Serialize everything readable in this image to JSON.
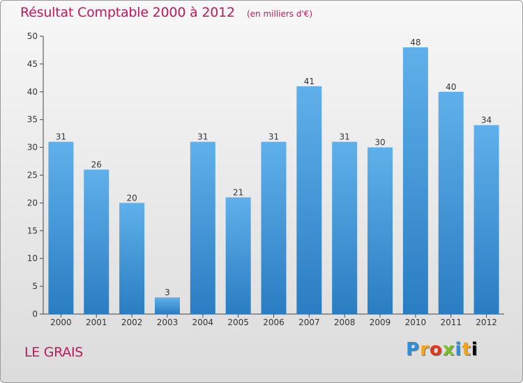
{
  "header": {
    "title": "Résultat Comptable 2000 à 2012",
    "subtitle": "(en milliers d'€)"
  },
  "footer": {
    "commune": "LE GRAIS",
    "logo_letters": [
      "P",
      "r",
      "o",
      "x",
      "i",
      "t",
      "i"
    ]
  },
  "colors": {
    "title": "#c0185a",
    "bar_top": "#5fb0ea",
    "bar_bottom": "#2a7dc2"
  },
  "chart_data": {
    "type": "bar",
    "categories": [
      "2000",
      "2001",
      "2002",
      "2003",
      "2004",
      "2005",
      "2006",
      "2007",
      "2008",
      "2009",
      "2010",
      "2011",
      "2012"
    ],
    "values": [
      31,
      26,
      20,
      3,
      31,
      21,
      31,
      41,
      31,
      30,
      48,
      40,
      34
    ],
    "yticks": [
      0,
      5,
      10,
      15,
      20,
      25,
      30,
      35,
      40,
      45,
      50
    ],
    "ylim": [
      0,
      50
    ],
    "grid": false,
    "data_labels": true
  }
}
